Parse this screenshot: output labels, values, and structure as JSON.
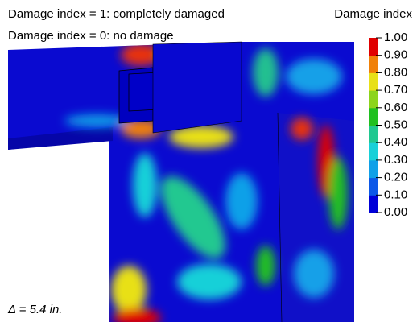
{
  "notes": [
    "Damage index = 1: completely damaged",
    "Damage index = 0: no damage"
  ],
  "legend": {
    "title": "Damage index",
    "ticks": [
      {
        "value": 1,
        "label": "1.00"
      },
      {
        "value": 0.9,
        "label": "0.90"
      },
      {
        "value": 0.8,
        "label": "0.80"
      },
      {
        "value": 0.7,
        "label": "0.70"
      },
      {
        "value": 0.6,
        "label": "0.60"
      },
      {
        "value": 0.5,
        "label": "0.50"
      },
      {
        "value": 0.4,
        "label": "0.40"
      },
      {
        "value": 0.3,
        "label": "0.30"
      },
      {
        "value": 0.2,
        "label": "0.20"
      },
      {
        "value": 0.1,
        "label": "0.10"
      },
      {
        "value": 0,
        "label": "0.00"
      }
    ],
    "colors": [
      "#0000d8",
      "#0c58e8",
      "#10a0e8",
      "#18d0d8",
      "#20c890",
      "#20c020",
      "#8cd41c",
      "#e8e018",
      "#f08008",
      "#e00000"
    ]
  },
  "delta_label": "Δ = 5.4 in."
}
